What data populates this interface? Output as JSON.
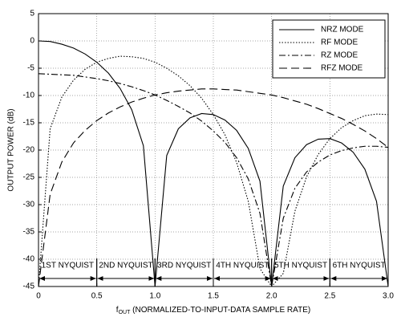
{
  "chart_data": {
    "type": "line",
    "ylabel": "OUTPUT POWER (dB)",
    "xlabel": [
      "f",
      "OUT",
      " (NORMALIZED-TO-INPUT-DATA SAMPLE RATE)"
    ],
    "x": [
      0,
      0.1,
      0.2,
      0.3,
      0.4,
      0.5,
      0.6,
      0.7,
      0.8,
      0.9,
      1.0,
      1.1,
      1.2,
      1.3,
      1.4,
      1.5,
      1.6,
      1.7,
      1.8,
      1.9,
      2.0,
      2.1,
      2.2,
      2.3,
      2.4,
      2.5,
      2.6,
      2.7,
      2.8,
      2.9,
      3.0
    ],
    "series": [
      {
        "name": "NRZ MODE",
        "color": "#000000",
        "style": "solid",
        "values": [
          0,
          -0.1,
          -0.6,
          -1.3,
          -2.4,
          -3.9,
          -5.9,
          -8.7,
          -12.6,
          -19.2,
          -45,
          -21.0,
          -16.1,
          -14.1,
          -13.3,
          -13.5,
          -14.5,
          -16.4,
          -19.7,
          -25.7,
          -45,
          -26.6,
          -21.4,
          -19.0,
          -18.0,
          -17.9,
          -18.7,
          -20.4,
          -23.5,
          -29.4,
          -45
        ]
      },
      {
        "name": "RF MODE",
        "color": "#000000",
        "style": "dotted",
        "values": [
          -45,
          -16.1,
          -10.3,
          -7.2,
          -5.2,
          -3.9,
          -3.2,
          -2.8,
          -2.9,
          -3.2,
          -3.9,
          -5.0,
          -6.4,
          -8.2,
          -10.5,
          -13.5,
          -17.2,
          -22.3,
          -29.4,
          -41.7,
          -45,
          -42.6,
          -31.2,
          -24.9,
          -20.8,
          -17.9,
          -15.9,
          -14.6,
          -13.7,
          -13.4,
          -13.5
        ]
      },
      {
        "name": "RZ MODE",
        "color": "#000000",
        "style": "dashdot",
        "values": [
          -6.0,
          -6.1,
          -6.2,
          -6.3,
          -6.6,
          -6.9,
          -7.3,
          -7.8,
          -8.4,
          -9.1,
          -9.9,
          -10.9,
          -12.0,
          -13.2,
          -14.7,
          -16.5,
          -18.6,
          -21.4,
          -25.3,
          -31.6,
          -45,
          -32.5,
          -27.0,
          -24.0,
          -22.2,
          -20.9,
          -20.1,
          -19.6,
          -19.3,
          -19.3,
          -19.5
        ]
      },
      {
        "name": "RFZ MODE",
        "color": "#000000",
        "style": "dashed",
        "values": [
          -45,
          -28.1,
          -22.2,
          -18.7,
          -16.4,
          -14.6,
          -13.2,
          -12.1,
          -11.2,
          -10.5,
          -9.9,
          -9.5,
          -9.2,
          -9.0,
          -8.8,
          -8.8,
          -8.9,
          -9.0,
          -9.3,
          -9.6,
          -9.9,
          -10.4,
          -11.0,
          -11.6,
          -12.4,
          -13.3,
          -14.2,
          -15.3,
          -16.5,
          -17.9,
          -19.5
        ]
      }
    ],
    "xlim": [
      0,
      3
    ],
    "xticks": [
      0,
      0.5,
      {
        "value": 1,
        "label": "1.0"
      },
      1.5,
      {
        "value": 2,
        "label": "2.0"
      },
      2.5,
      {
        "value": 3,
        "label": "3.0"
      }
    ],
    "ylim": [
      -45,
      5
    ],
    "yticks": [
      -45,
      -40,
      -35,
      -30,
      -25,
      -20,
      -15,
      -10,
      -5,
      0,
      5
    ],
    "grid": true,
    "legend": "upper right",
    "zones": [
      {
        "label": "1ST NYQUIST",
        "from": 0,
        "to": 0.5
      },
      {
        "label": "2ND NYQUIST",
        "from": 0.5,
        "to": 1
      },
      {
        "label": "3RD NYQUIST",
        "from": 1,
        "to": 1.5
      },
      {
        "label": "4TH NYQUIST",
        "from": 1.5,
        "to": 2
      },
      {
        "label": "5TH NYQUIST",
        "from": 2,
        "to": 2.5
      },
      {
        "label": "6TH NYQUIST",
        "from": 2.5,
        "to": 3
      }
    ]
  }
}
